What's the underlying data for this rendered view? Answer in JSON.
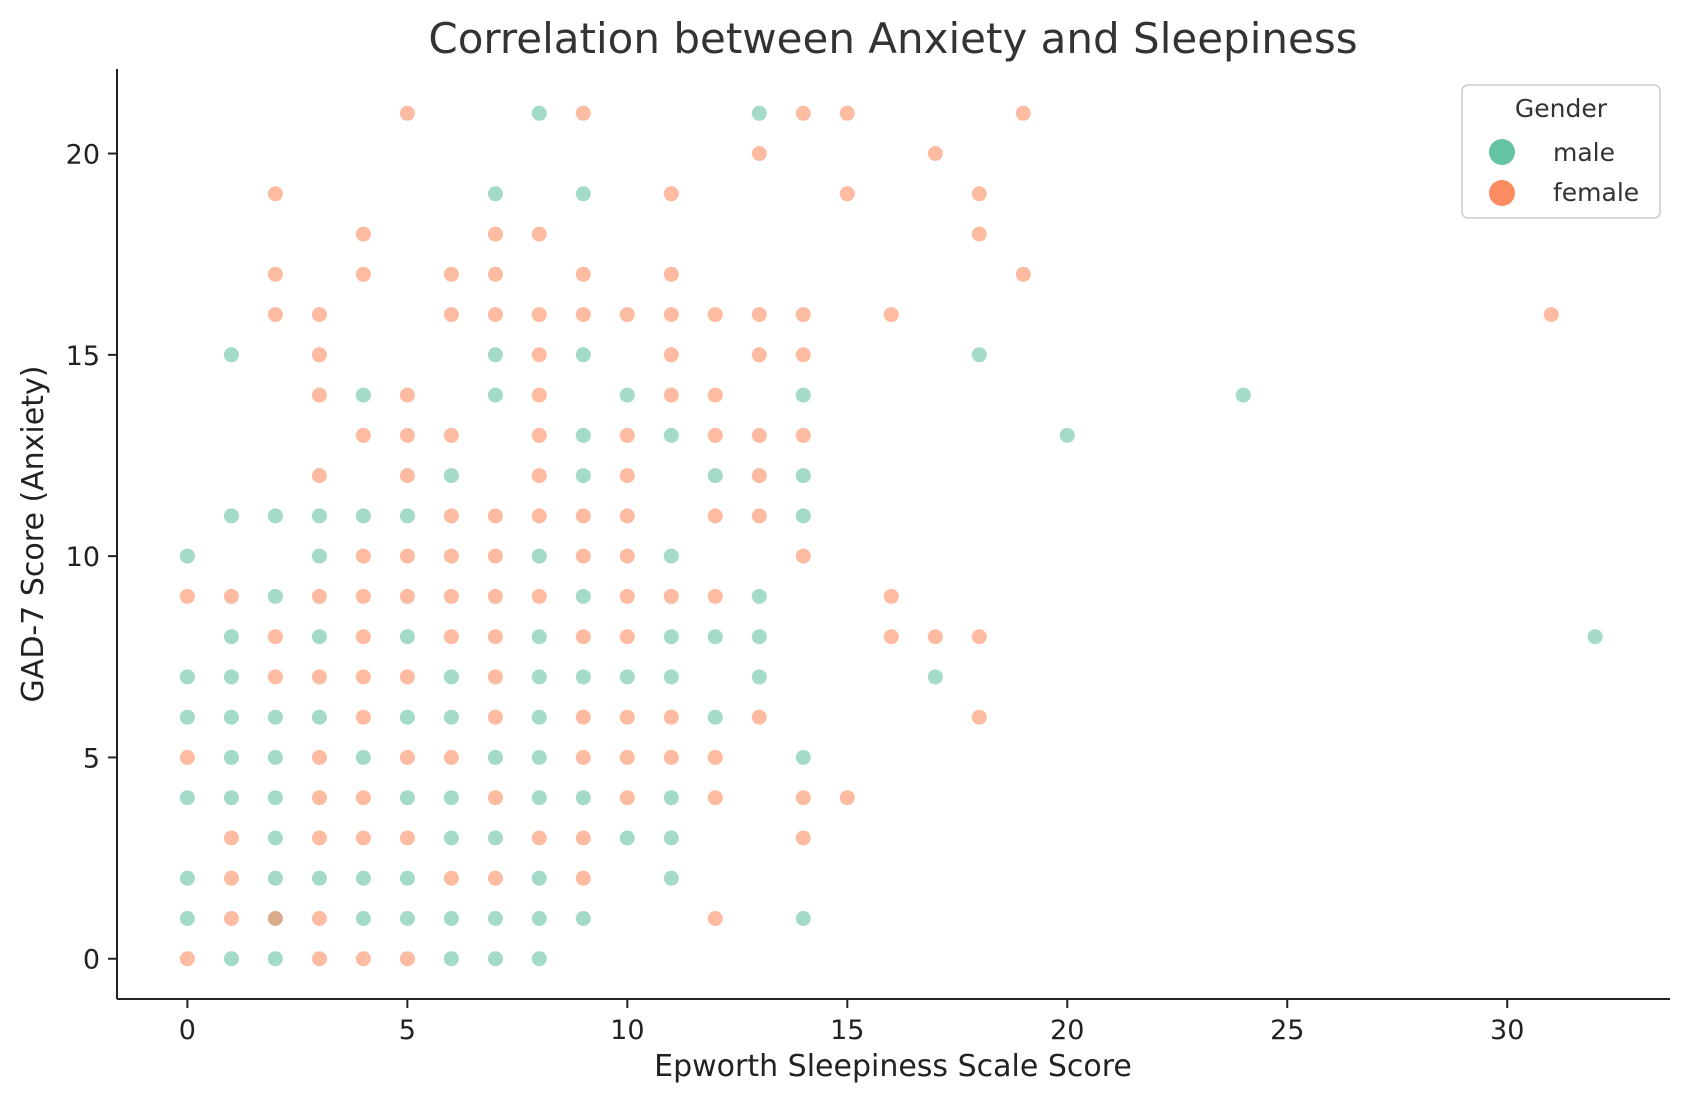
{
  "chart_data": {
    "type": "scatter",
    "title": "Correlation between Anxiety and Sleepiness",
    "xlabel": "Epworth Sleepiness Scale Score",
    "ylabel": "GAD-7 Score (Anxiety)",
    "xlim": [
      -1.6,
      33.7
    ],
    "ylim": [
      -1,
      22.1
    ],
    "xticks": [
      0,
      5,
      10,
      15,
      20,
      25,
      30
    ],
    "yticks": [
      0,
      5,
      10,
      15,
      20
    ],
    "grid": false,
    "legend": {
      "title": "Gender",
      "placement": "top-right"
    },
    "series": [
      {
        "name": "male",
        "color": "#66c2a5",
        "points": [
          [
            8,
            21
          ],
          [
            13,
            21
          ],
          [
            7,
            19
          ],
          [
            9,
            19
          ],
          [
            1,
            15
          ],
          [
            7,
            15
          ],
          [
            9,
            15
          ],
          [
            18,
            15
          ],
          [
            4,
            14
          ],
          [
            7,
            14
          ],
          [
            10,
            14
          ],
          [
            14,
            14
          ],
          [
            24,
            14
          ],
          [
            9,
            13
          ],
          [
            11,
            13
          ],
          [
            20,
            13
          ],
          [
            6,
            12
          ],
          [
            9,
            12
          ],
          [
            12,
            12
          ],
          [
            14,
            12
          ],
          [
            1,
            11
          ],
          [
            2,
            11
          ],
          [
            3,
            11
          ],
          [
            4,
            11
          ],
          [
            5,
            11
          ],
          [
            14,
            11
          ],
          [
            0,
            10
          ],
          [
            3,
            10
          ],
          [
            8,
            10
          ],
          [
            11,
            10
          ],
          [
            2,
            9
          ],
          [
            9,
            9
          ],
          [
            13,
            9
          ],
          [
            1,
            8
          ],
          [
            3,
            8
          ],
          [
            5,
            8
          ],
          [
            8,
            8
          ],
          [
            11,
            8
          ],
          [
            12,
            8
          ],
          [
            13,
            8
          ],
          [
            32,
            8
          ],
          [
            0,
            7
          ],
          [
            1,
            7
          ],
          [
            6,
            7
          ],
          [
            8,
            7
          ],
          [
            9,
            7
          ],
          [
            10,
            7
          ],
          [
            11,
            7
          ],
          [
            13,
            7
          ],
          [
            17,
            7
          ],
          [
            0,
            6
          ],
          [
            1,
            6
          ],
          [
            2,
            6
          ],
          [
            3,
            6
          ],
          [
            5,
            6
          ],
          [
            6,
            6
          ],
          [
            8,
            6
          ],
          [
            12,
            6
          ],
          [
            1,
            5
          ],
          [
            2,
            5
          ],
          [
            4,
            5
          ],
          [
            7,
            5
          ],
          [
            8,
            5
          ],
          [
            14,
            5
          ],
          [
            0,
            4
          ],
          [
            1,
            4
          ],
          [
            2,
            4
          ],
          [
            5,
            4
          ],
          [
            6,
            4
          ],
          [
            8,
            4
          ],
          [
            9,
            4
          ],
          [
            11,
            4
          ],
          [
            2,
            3
          ],
          [
            6,
            3
          ],
          [
            7,
            3
          ],
          [
            10,
            3
          ],
          [
            11,
            3
          ],
          [
            0,
            2
          ],
          [
            2,
            2
          ],
          [
            3,
            2
          ],
          [
            4,
            2
          ],
          [
            5,
            2
          ],
          [
            8,
            2
          ],
          [
            11,
            2
          ],
          [
            0,
            1
          ],
          [
            2,
            1
          ],
          [
            4,
            1
          ],
          [
            5,
            1
          ],
          [
            6,
            1
          ],
          [
            7,
            1
          ],
          [
            8,
            1
          ],
          [
            9,
            1
          ],
          [
            14,
            1
          ],
          [
            1,
            0
          ],
          [
            2,
            0
          ],
          [
            6,
            0
          ],
          [
            7,
            0
          ],
          [
            8,
            0
          ]
        ]
      },
      {
        "name": "female",
        "color": "#fc8d62",
        "points": [
          [
            5,
            21
          ],
          [
            9,
            21
          ],
          [
            14,
            21
          ],
          [
            15,
            21
          ],
          [
            19,
            21
          ],
          [
            13,
            20
          ],
          [
            17,
            20
          ],
          [
            2,
            19
          ],
          [
            11,
            19
          ],
          [
            15,
            19
          ],
          [
            18,
            19
          ],
          [
            4,
            18
          ],
          [
            7,
            18
          ],
          [
            8,
            18
          ],
          [
            18,
            18
          ],
          [
            2,
            17
          ],
          [
            4,
            17
          ],
          [
            6,
            17
          ],
          [
            7,
            17
          ],
          [
            9,
            17
          ],
          [
            11,
            17
          ],
          [
            19,
            17
          ],
          [
            2,
            16
          ],
          [
            3,
            16
          ],
          [
            6,
            16
          ],
          [
            7,
            16
          ],
          [
            8,
            16
          ],
          [
            9,
            16
          ],
          [
            10,
            16
          ],
          [
            11,
            16
          ],
          [
            12,
            16
          ],
          [
            13,
            16
          ],
          [
            14,
            16
          ],
          [
            16,
            16
          ],
          [
            31,
            16
          ],
          [
            3,
            15
          ],
          [
            8,
            15
          ],
          [
            11,
            15
          ],
          [
            13,
            15
          ],
          [
            14,
            15
          ],
          [
            3,
            14
          ],
          [
            5,
            14
          ],
          [
            8,
            14
          ],
          [
            11,
            14
          ],
          [
            12,
            14
          ],
          [
            4,
            13
          ],
          [
            5,
            13
          ],
          [
            6,
            13
          ],
          [
            8,
            13
          ],
          [
            10,
            13
          ],
          [
            12,
            13
          ],
          [
            13,
            13
          ],
          [
            14,
            13
          ],
          [
            3,
            12
          ],
          [
            5,
            12
          ],
          [
            8,
            12
          ],
          [
            10,
            12
          ],
          [
            13,
            12
          ],
          [
            6,
            11
          ],
          [
            7,
            11
          ],
          [
            8,
            11
          ],
          [
            9,
            11
          ],
          [
            10,
            11
          ],
          [
            12,
            11
          ],
          [
            13,
            11
          ],
          [
            4,
            10
          ],
          [
            5,
            10
          ],
          [
            6,
            10
          ],
          [
            7,
            10
          ],
          [
            9,
            10
          ],
          [
            10,
            10
          ],
          [
            14,
            10
          ],
          [
            0,
            9
          ],
          [
            1,
            9
          ],
          [
            3,
            9
          ],
          [
            4,
            9
          ],
          [
            5,
            9
          ],
          [
            6,
            9
          ],
          [
            7,
            9
          ],
          [
            8,
            9
          ],
          [
            10,
            9
          ],
          [
            11,
            9
          ],
          [
            12,
            9
          ],
          [
            16,
            9
          ],
          [
            2,
            8
          ],
          [
            4,
            8
          ],
          [
            6,
            8
          ],
          [
            7,
            8
          ],
          [
            9,
            8
          ],
          [
            10,
            8
          ],
          [
            16,
            8
          ],
          [
            17,
            8
          ],
          [
            18,
            8
          ],
          [
            2,
            7
          ],
          [
            3,
            7
          ],
          [
            4,
            7
          ],
          [
            5,
            7
          ],
          [
            7,
            7
          ],
          [
            4,
            6
          ],
          [
            7,
            6
          ],
          [
            9,
            6
          ],
          [
            10,
            6
          ],
          [
            11,
            6
          ],
          [
            13,
            6
          ],
          [
            18,
            6
          ],
          [
            0,
            5
          ],
          [
            3,
            5
          ],
          [
            5,
            5
          ],
          [
            6,
            5
          ],
          [
            9,
            5
          ],
          [
            10,
            5
          ],
          [
            11,
            5
          ],
          [
            12,
            5
          ],
          [
            3,
            4
          ],
          [
            4,
            4
          ],
          [
            7,
            4
          ],
          [
            10,
            4
          ],
          [
            12,
            4
          ],
          [
            14,
            4
          ],
          [
            15,
            4
          ],
          [
            1,
            3
          ],
          [
            3,
            3
          ],
          [
            4,
            3
          ],
          [
            5,
            3
          ],
          [
            8,
            3
          ],
          [
            9,
            3
          ],
          [
            14,
            3
          ],
          [
            1,
            2
          ],
          [
            6,
            2
          ],
          [
            7,
            2
          ],
          [
            9,
            2
          ],
          [
            1,
            1
          ],
          [
            2,
            1
          ],
          [
            3,
            1
          ],
          [
            12,
            1
          ],
          [
            0,
            0
          ],
          [
            3,
            0
          ],
          [
            4,
            0
          ],
          [
            5,
            0
          ]
        ]
      }
    ]
  }
}
